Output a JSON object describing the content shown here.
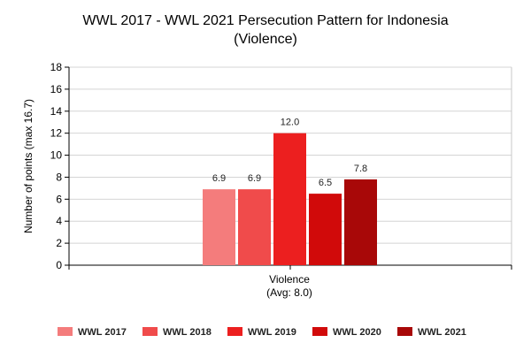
{
  "chart_data": {
    "type": "bar",
    "title": [
      "WWL 2017 - WWL 2021 Persecution Pattern for Indonesia",
      "(Violence)"
    ],
    "ylabel": "Number of points (max 16.7)",
    "category": "Violence",
    "category_sub": "(Avg: 8.0)",
    "ylim": [
      0,
      18
    ],
    "yticks": [
      0,
      2,
      4,
      6,
      8,
      10,
      12,
      14,
      16,
      18
    ],
    "grid": true,
    "legend_position": "bottom",
    "series": [
      {
        "name": "WWL 2017",
        "value": 6.9,
        "label": "6.9",
        "color": "#f47c7c"
      },
      {
        "name": "WWL 2018",
        "value": 6.9,
        "label": "6.9",
        "color": "#f04b4b"
      },
      {
        "name": "WWL 2019",
        "value": 12.0,
        "label": "12.0",
        "color": "#ec1f1f"
      },
      {
        "name": "WWL 2020",
        "value": 6.5,
        "label": "6.5",
        "color": "#d10a0a"
      },
      {
        "name": "WWL 2021",
        "value": 7.8,
        "label": "7.8",
        "color": "#a80808"
      }
    ]
  }
}
